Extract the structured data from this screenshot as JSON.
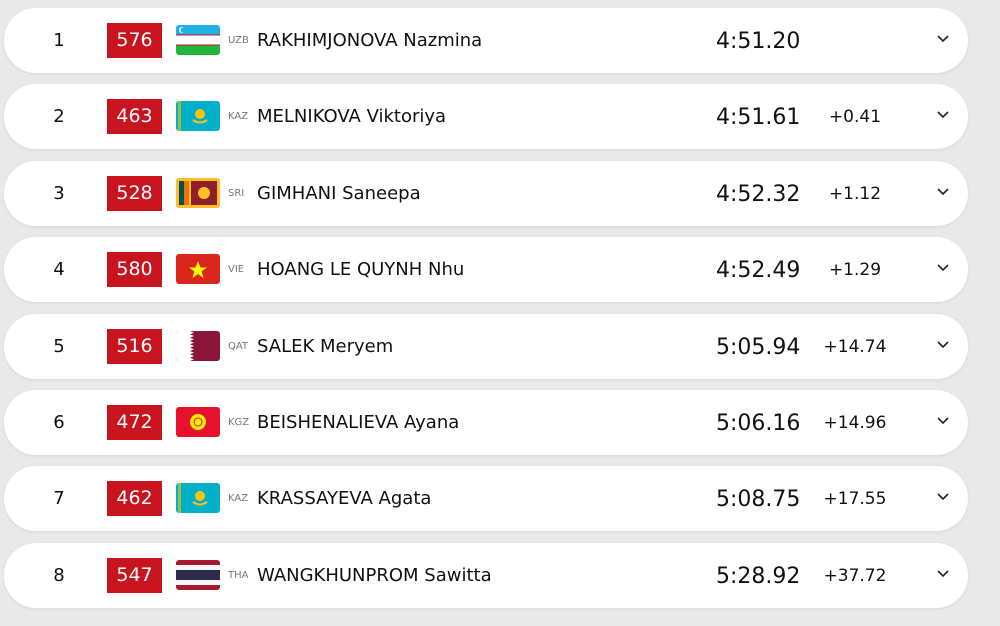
{
  "results": [
    {
      "rank": "1",
      "bib": "576",
      "country": "UZB",
      "name": "RAKHIMJONOVA Nazmina",
      "time": "4:51.20",
      "gap": "",
      "flag": "uzb-flag"
    },
    {
      "rank": "2",
      "bib": "463",
      "country": "KAZ",
      "name": "MELNIKOVA Viktoriya",
      "time": "4:51.61",
      "gap": "+0.41",
      "flag": "kaz-flag"
    },
    {
      "rank": "3",
      "bib": "528",
      "country": "SRI",
      "name": "GIMHANI Saneepa",
      "time": "4:52.32",
      "gap": "+1.12",
      "flag": "sri-flag"
    },
    {
      "rank": "4",
      "bib": "580",
      "country": "VIE",
      "name": "HOANG LE QUYNH Nhu",
      "time": "4:52.49",
      "gap": "+1.29",
      "flag": "vie-flag"
    },
    {
      "rank": "5",
      "bib": "516",
      "country": "QAT",
      "name": "SALEK Meryem",
      "time": "5:05.94",
      "gap": "+14.74",
      "flag": "qat-flag"
    },
    {
      "rank": "6",
      "bib": "472",
      "country": "KGZ",
      "name": "BEISHENALIEVA Ayana",
      "time": "5:06.16",
      "gap": "+14.96",
      "flag": "kgz-flag"
    },
    {
      "rank": "7",
      "bib": "462",
      "country": "KAZ",
      "name": "KRASSAYEVA Agata",
      "time": "5:08.75",
      "gap": "+17.55",
      "flag": "kaz-flag"
    },
    {
      "rank": "8",
      "bib": "547",
      "country": "THA",
      "name": "WANGKHUNPROM Sawitta",
      "time": "5:28.92",
      "gap": "+37.72",
      "flag": "tha-flag"
    }
  ],
  "colors": {
    "bib": "#c8141e"
  }
}
